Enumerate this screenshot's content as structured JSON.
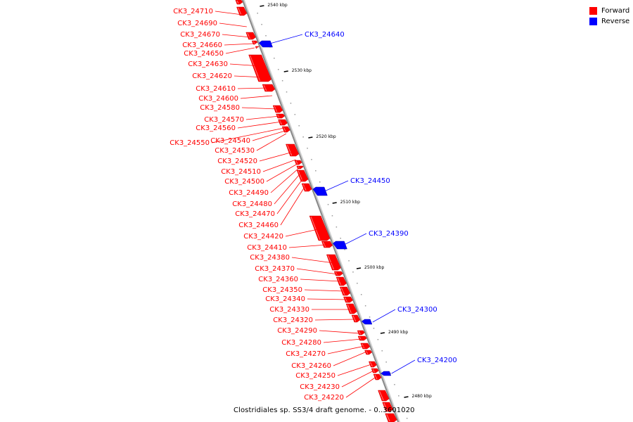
{
  "legend": [
    {
      "label": "Forward",
      "color": "#ff0000"
    },
    {
      "label": "Reverse",
      "color": "#0000ff"
    }
  ],
  "caption": "Clostridiales sp. SS3/4 draft genome. - 0..3601020",
  "colors": {
    "forward": "#ff0000",
    "reverse": "#0000ff",
    "axis": "#888888"
  },
  "scale_ticks": [
    "2540 kbp",
    "2530 kbp",
    "2520 kbp",
    "2510 kbp",
    "2500 kbp",
    "2490 kbp",
    "2480 kbp"
  ],
  "forward_labels": [
    "CK3_24710",
    "CK3_24690",
    "CK3_24670",
    "CK3_24660",
    "CK3_24650",
    "CK3_24630",
    "CK3_24620",
    "CK3_24610",
    "CK3_24600",
    "CK3_24580",
    "CK3_24570",
    "CK3_24560",
    "CK3_24550",
    "CK3_24540",
    "CK3_24530",
    "CK3_24520",
    "CK3_24510",
    "CK3_24500",
    "CK3_24490",
    "CK3_24480",
    "CK3_24470",
    "CK3_24460",
    "CK3_24420",
    "CK3_24410",
    "CK3_24380",
    "CK3_24370",
    "CK3_24360",
    "CK3_24350",
    "CK3_24340",
    "CK3_24330",
    "CK3_24320",
    "CK3_24290",
    "CK3_24280",
    "CK3_24270",
    "CK3_24260",
    "CK3_24250",
    "CK3_24230",
    "CK3_24220"
  ],
  "reverse_labels": [
    "CK3_24640",
    "CK3_24450",
    "CK3_24390",
    "CK3_24300",
    "CK3_24200"
  ]
}
